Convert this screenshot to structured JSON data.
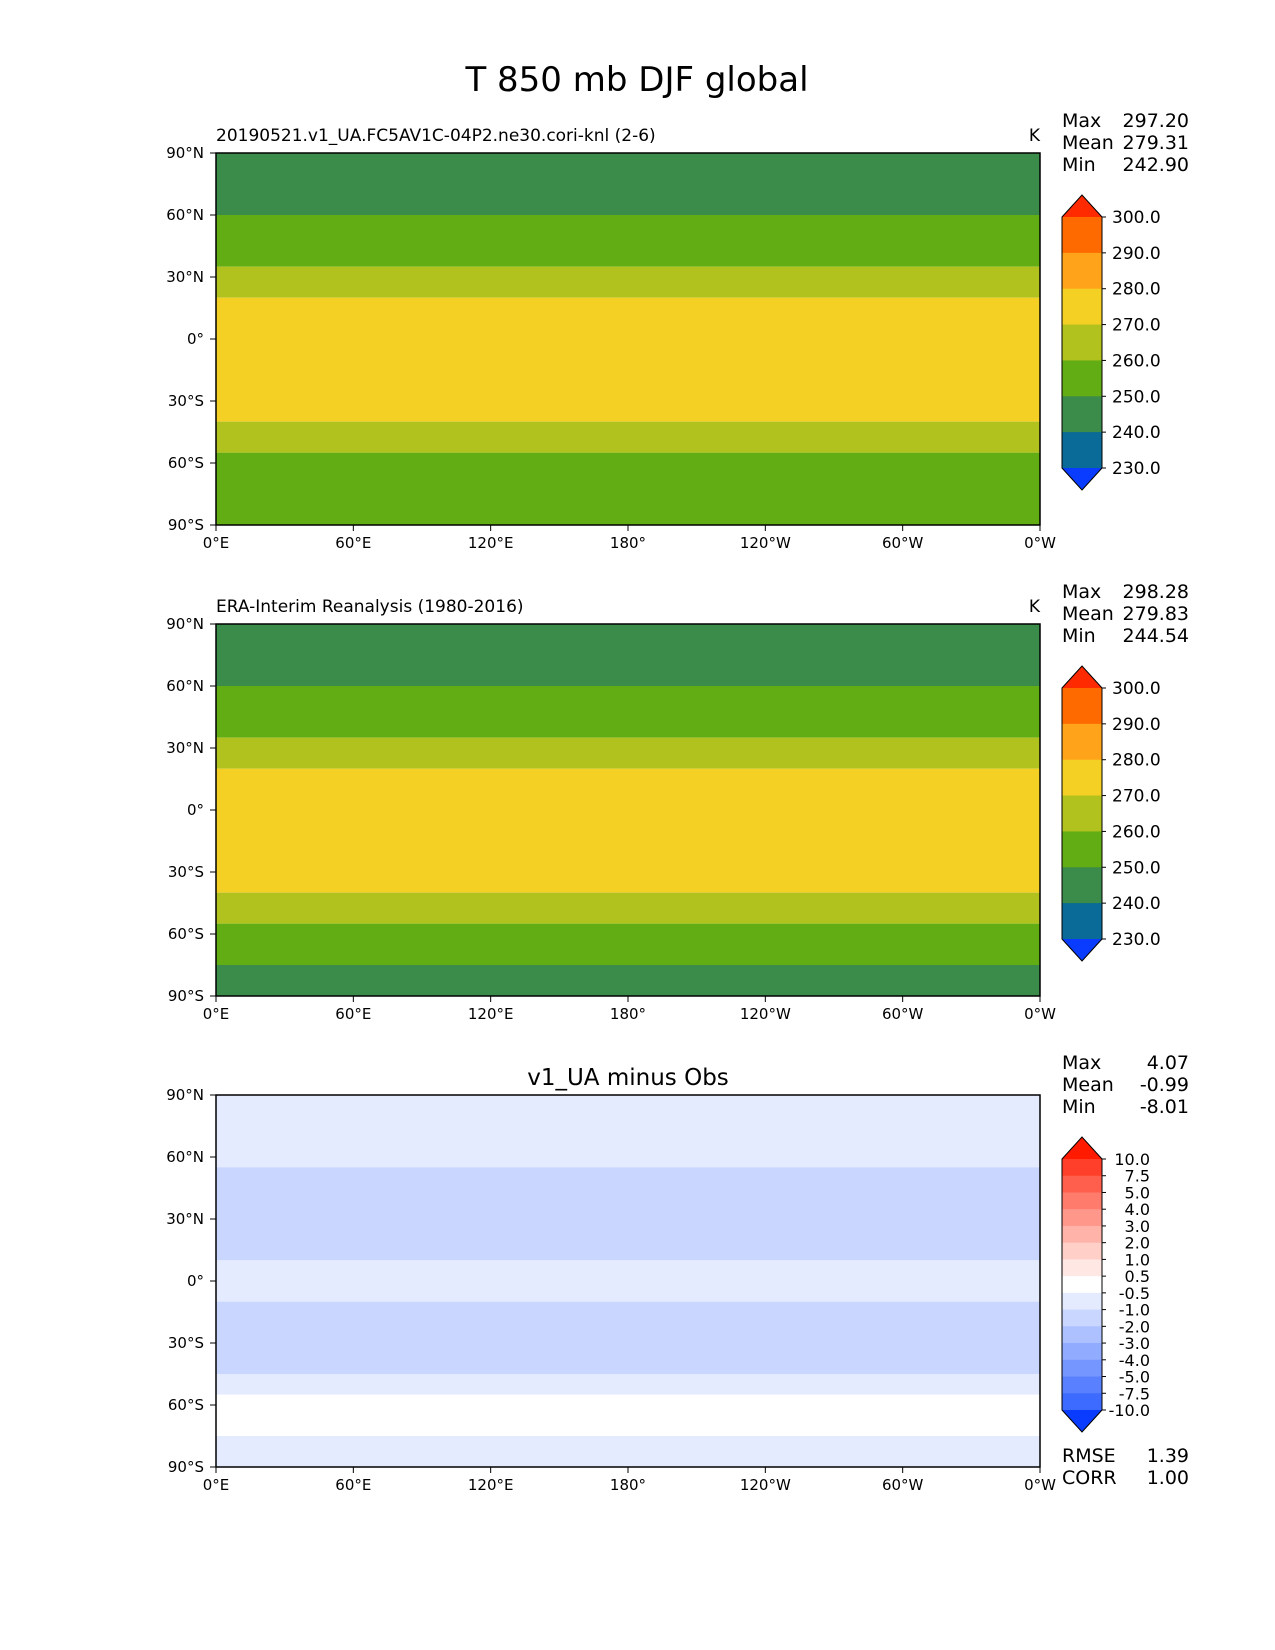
{
  "figure": {
    "title": "T 850 mb DJF global"
  },
  "chart_data": [
    {
      "type": "heatmap",
      "title": "",
      "subtitle": "20190521.v1_UA.FC5AV1C-04P2.ne30.cori-knl (2-6)",
      "units": "K",
      "stats": [
        {
          "label": "Max",
          "value": "297.20"
        },
        {
          "label": "Mean",
          "value": "279.31"
        },
        {
          "label": "Min",
          "value": "242.90"
        }
      ],
      "x_ticks": [
        "0°E",
        "60°E",
        "120°E",
        "180°",
        "120°W",
        "60°W",
        "0°W"
      ],
      "y_ticks": [
        "90°N",
        "60°N",
        "30°N",
        "0°",
        "30°S",
        "60°S",
        "90°S"
      ],
      "xlim": [
        0,
        360
      ],
      "ylim": [
        -90,
        90
      ],
      "colorbar": {
        "labels": [
          "300.0",
          "290.0",
          "280.0",
          "270.0",
          "260.0",
          "250.0",
          "240.0",
          "230.0"
        ],
        "colors": [
          "#ff2a00",
          "#ff6a00",
          "#ffa31a",
          "#f4cf24",
          "#b1c21e",
          "#62ad13",
          "#3b8c4b",
          "#0a6a98",
          "#0a3cff"
        ]
      },
      "latitude_bands_top_to_bottom": [
        {
          "lat_from": 90,
          "lat_to": 60,
          "value": "250.0"
        },
        {
          "lat_from": 60,
          "lat_to": 35,
          "value": "260.0"
        },
        {
          "lat_from": 35,
          "lat_to": 20,
          "value": "270.0"
        },
        {
          "lat_from": 20,
          "lat_to": -40,
          "value": "280.0"
        },
        {
          "lat_from": -40,
          "lat_to": -55,
          "value": "270.0"
        },
        {
          "lat_from": -55,
          "lat_to": -90,
          "value": "260.0"
        }
      ],
      "corner_stats": []
    },
    {
      "type": "heatmap",
      "title": "",
      "subtitle": "ERA-Interim Reanalysis (1980-2016)",
      "units": "K",
      "stats": [
        {
          "label": "Max",
          "value": "298.28"
        },
        {
          "label": "Mean",
          "value": "279.83"
        },
        {
          "label": "Min",
          "value": "244.54"
        }
      ],
      "x_ticks": [
        "0°E",
        "60°E",
        "120°E",
        "180°",
        "120°W",
        "60°W",
        "0°W"
      ],
      "y_ticks": [
        "90°N",
        "60°N",
        "30°N",
        "0°",
        "30°S",
        "60°S",
        "90°S"
      ],
      "xlim": [
        0,
        360
      ],
      "ylim": [
        -90,
        90
      ],
      "colorbar": {
        "labels": [
          "300.0",
          "290.0",
          "280.0",
          "270.0",
          "260.0",
          "250.0",
          "240.0",
          "230.0"
        ],
        "colors": [
          "#ff2a00",
          "#ff6a00",
          "#ffa31a",
          "#f4cf24",
          "#b1c21e",
          "#62ad13",
          "#3b8c4b",
          "#0a6a98",
          "#0a3cff"
        ]
      },
      "latitude_bands_top_to_bottom": [
        {
          "lat_from": 90,
          "lat_to": 60,
          "value": "250.0"
        },
        {
          "lat_from": 60,
          "lat_to": 35,
          "value": "260.0"
        },
        {
          "lat_from": 35,
          "lat_to": 20,
          "value": "270.0"
        },
        {
          "lat_from": 20,
          "lat_to": -40,
          "value": "280.0"
        },
        {
          "lat_from": -40,
          "lat_to": -55,
          "value": "270.0"
        },
        {
          "lat_from": -55,
          "lat_to": -75,
          "value": "260.0"
        },
        {
          "lat_from": -75,
          "lat_to": -90,
          "value": "250.0"
        }
      ],
      "corner_stats": []
    },
    {
      "type": "heatmap",
      "title": "v1_UA minus Obs",
      "subtitle": "",
      "units": "",
      "stats": [
        {
          "label": "Max",
          "value": "4.07"
        },
        {
          "label": "Mean",
          "value": "-0.99"
        },
        {
          "label": "Min",
          "value": "-8.01"
        }
      ],
      "x_ticks": [
        "0°E",
        "60°E",
        "120°E",
        "180°",
        "120°W",
        "60°W",
        "0°W"
      ],
      "y_ticks": [
        "90°N",
        "60°N",
        "30°N",
        "0°",
        "30°S",
        "60°S",
        "90°S"
      ],
      "xlim": [
        0,
        360
      ],
      "ylim": [
        -90,
        90
      ],
      "colorbar": {
        "labels": [
          "10.0",
          "7.5",
          "5.0",
          "4.0",
          "3.0",
          "2.0",
          "1.0",
          "0.5",
          "-0.5",
          "-1.0",
          "-2.0",
          "-3.0",
          "-4.0",
          "-5.0",
          "-7.5",
          "-10.0"
        ],
        "colors": [
          "#ff1a00",
          "#ff3f2a",
          "#ff5f4c",
          "#ff7b6b",
          "#ff978a",
          "#ffb3a9",
          "#ffcfc8",
          "#ffe8e4",
          "#ffffff",
          "#e4ebff",
          "#c9d6ff",
          "#adc0ff",
          "#91abff",
          "#7595ff",
          "#5980ff",
          "#3d6bff",
          "#0a3cff"
        ]
      },
      "latitude_bands_top_to_bottom": [
        {
          "lat_from": 90,
          "lat_to": 55,
          "value": "-0.5"
        },
        {
          "lat_from": 55,
          "lat_to": 10,
          "value": "-1.0"
        },
        {
          "lat_from": 10,
          "lat_to": -10,
          "value": "-0.5"
        },
        {
          "lat_from": -10,
          "lat_to": -45,
          "value": "-1.0"
        },
        {
          "lat_from": -45,
          "lat_to": -55,
          "value": "-0.5"
        },
        {
          "lat_from": -55,
          "lat_to": -75,
          "value": "0.5"
        },
        {
          "lat_from": -75,
          "lat_to": -90,
          "value": "-0.5"
        }
      ],
      "corner_stats": [
        {
          "label": "RMSE",
          "value": "1.39"
        },
        {
          "label": "CORR",
          "value": "1.00"
        }
      ]
    }
  ]
}
